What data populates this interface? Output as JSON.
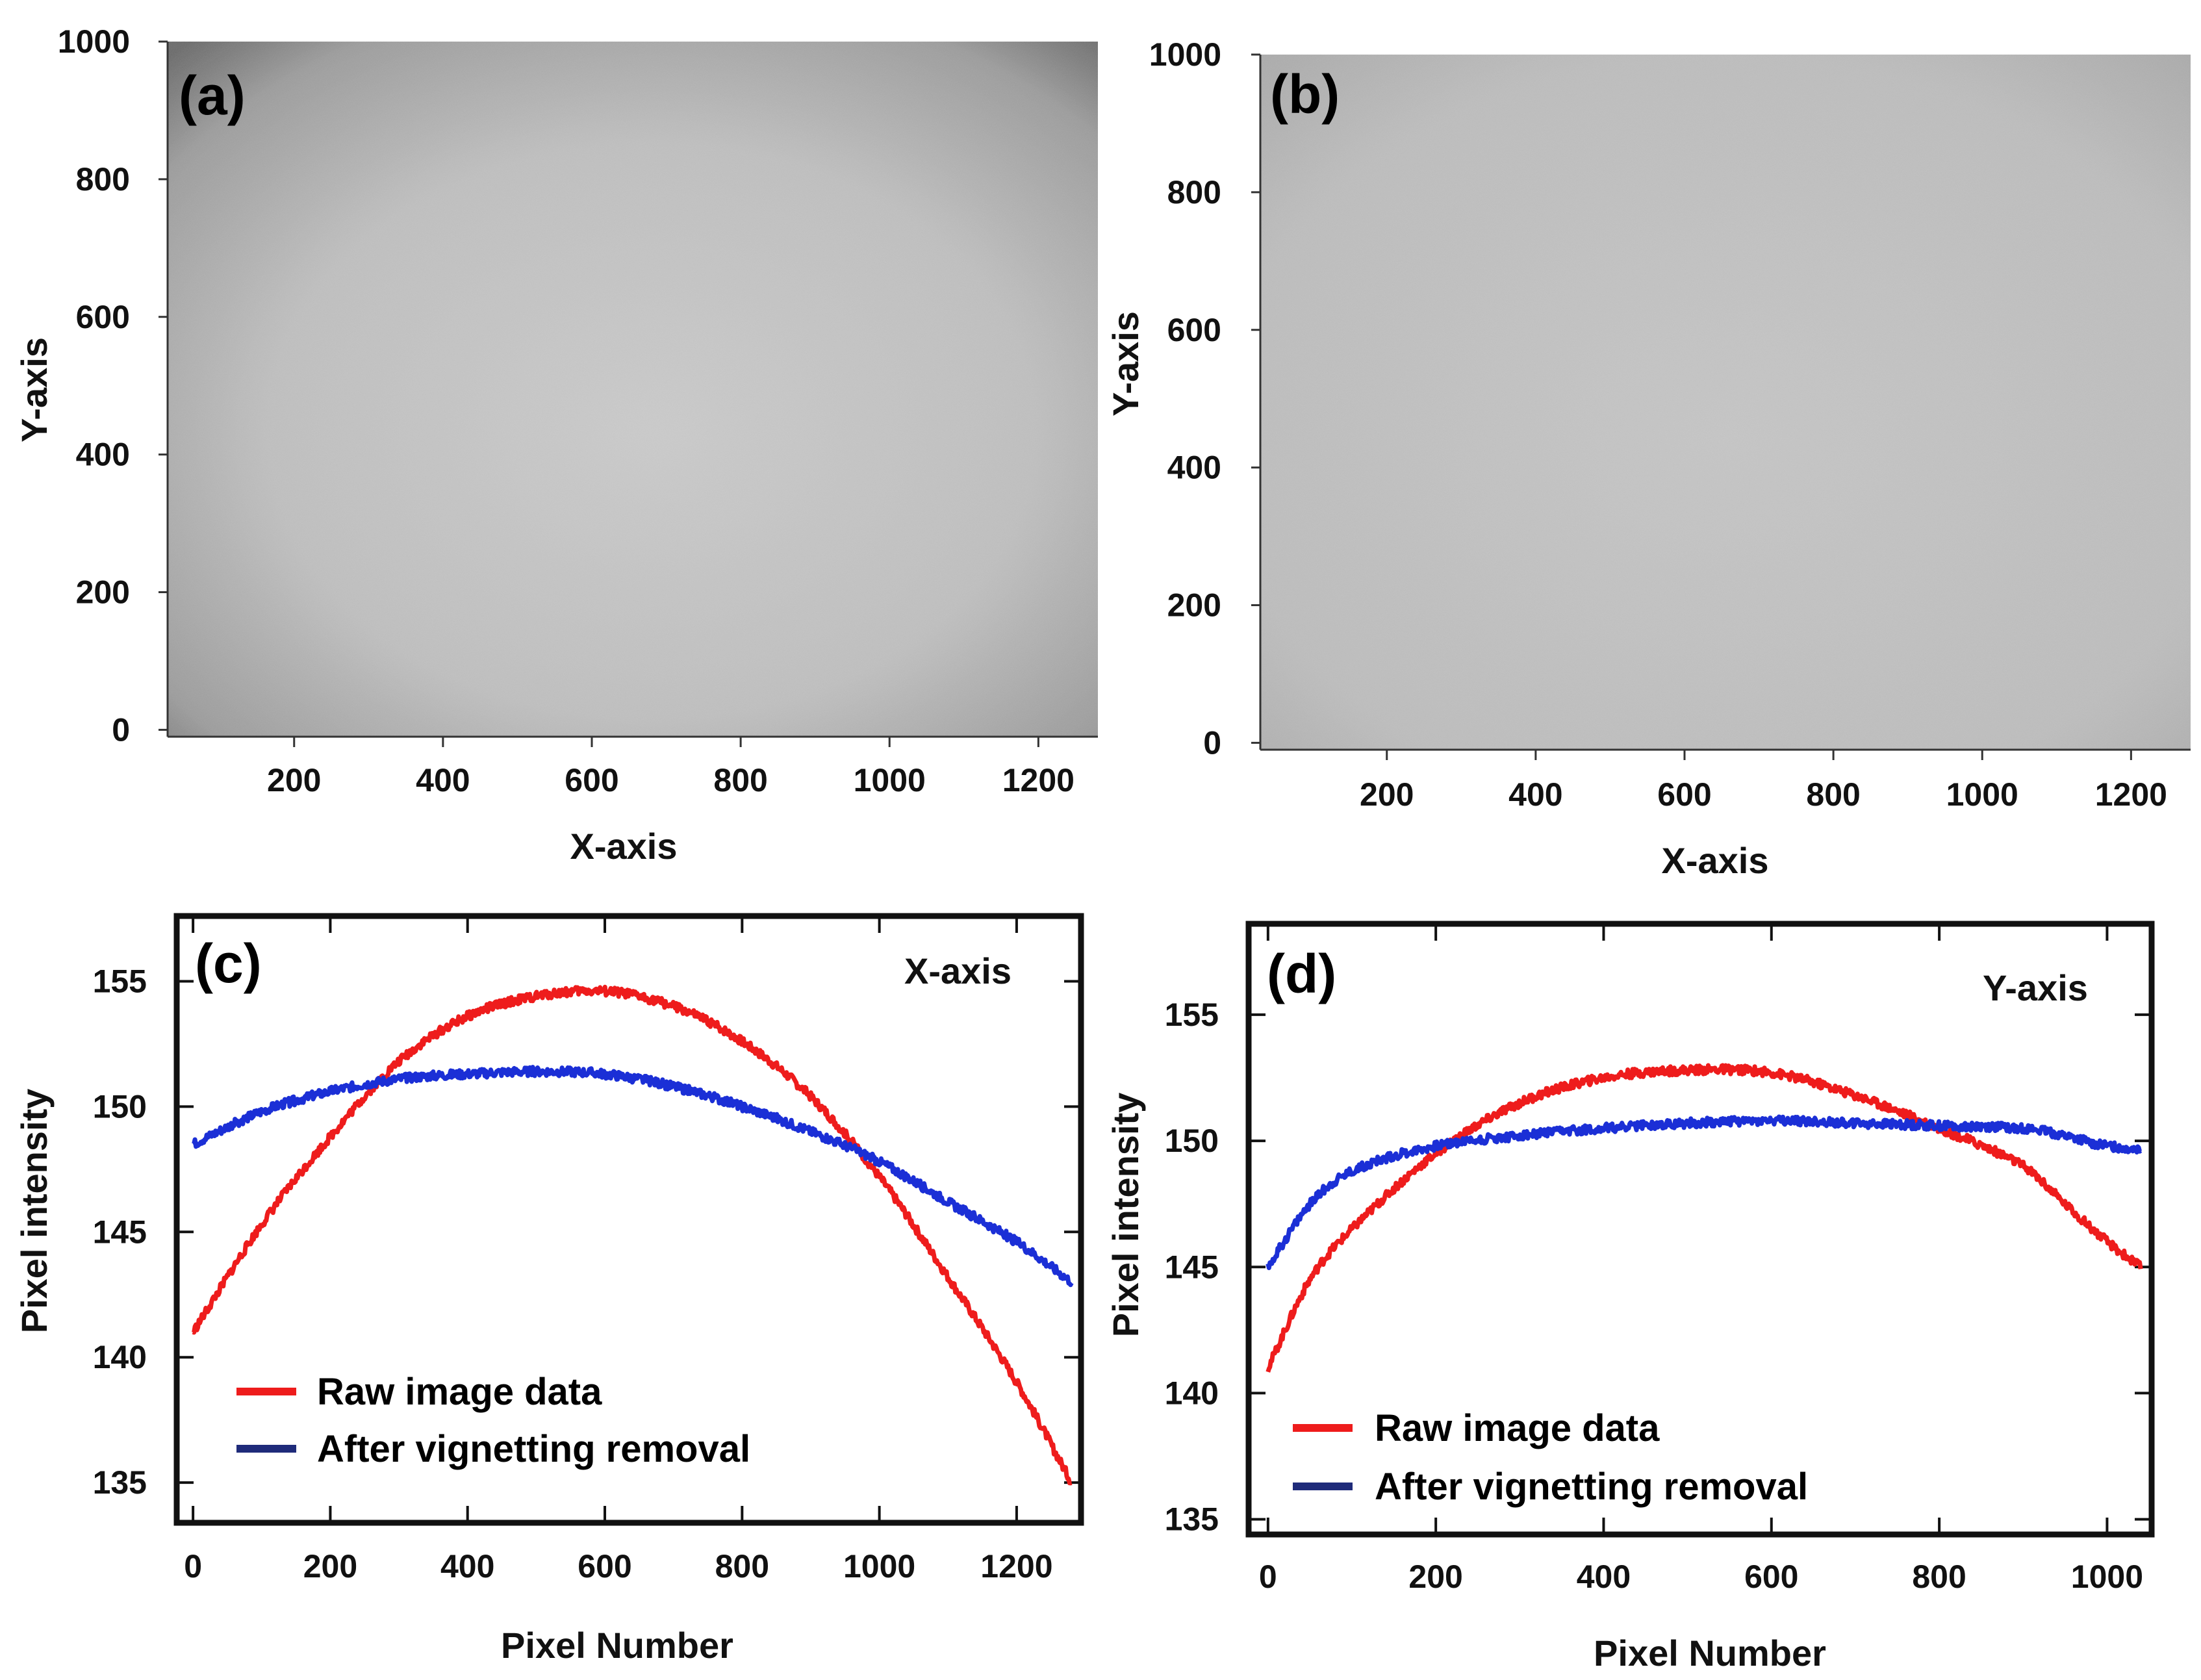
{
  "chart_data": [
    {
      "panel": "(a)",
      "type": "heatmap",
      "description_hidden": false,
      "xlabel": "X-axis",
      "ylabel": "Y-axis",
      "xlim": [
        30,
        1280
      ],
      "ylim": [
        -10,
        1000
      ],
      "x_ticks": [
        200,
        400,
        600,
        800,
        1000,
        1200
      ],
      "y_ticks": [
        0,
        200,
        400,
        600,
        800,
        1000
      ],
      "colors": {
        "center": "#c9c9c9",
        "edge": "#7d7d7d",
        "corner": "#555555"
      }
    },
    {
      "panel": "(b)",
      "type": "heatmap",
      "xlabel": "X-axis",
      "ylabel": "Y-axis",
      "xlim": [
        30,
        1280
      ],
      "ylim": [
        -10,
        1000
      ],
      "x_ticks": [
        200,
        400,
        600,
        800,
        1000,
        1200
      ],
      "y_ticks": [
        0,
        200,
        400,
        600,
        800,
        1000
      ],
      "colors": {
        "center": "#c3c3c3",
        "edge": "#b0b0b0",
        "corner": "#a0a0a0"
      }
    },
    {
      "panel": "(c)",
      "type": "line",
      "annotation": "X-axis",
      "xlabel": "Pixel Number",
      "ylabel": "Pixel intensity",
      "xlim": [
        -20,
        1290
      ],
      "ylim": [
        133.5,
        157.5
      ],
      "x_ticks": [
        0,
        200,
        400,
        600,
        800,
        1000,
        1200
      ],
      "y_ticks": [
        135,
        140,
        145,
        150,
        155
      ],
      "legend_position": "lower-left",
      "series": [
        {
          "name": "Raw image data",
          "color": "#ee1c1c",
          "x": [
            0,
            100,
            200,
            300,
            400,
            500,
            600,
            700,
            800,
            900,
            1000,
            1100,
            1200,
            1280
          ],
          "values": [
            141,
            145.3,
            148.8,
            151.8,
            153.6,
            154.4,
            154.6,
            154.0,
            152.6,
            150.4,
            147.2,
            143.2,
            139.0,
            135
          ]
        },
        {
          "name": "After vignetting removal",
          "color": "#1b2fd6",
          "x": [
            0,
            100,
            200,
            300,
            400,
            500,
            600,
            700,
            800,
            900,
            1000,
            1100,
            1200,
            1280
          ],
          "values": [
            148.5,
            149.8,
            150.6,
            151.1,
            151.3,
            151.4,
            151.3,
            150.8,
            150.0,
            149.0,
            147.8,
            146.2,
            144.6,
            143
          ]
        }
      ]
    },
    {
      "panel": "(d)",
      "type": "line",
      "annotation": "Y-axis",
      "xlabel": "Pixel Number",
      "ylabel": "Pixel intensity",
      "xlim": [
        -20,
        1050
      ],
      "ylim": [
        134.5,
        158.5
      ],
      "x_ticks": [
        0,
        200,
        400,
        600,
        800,
        1000
      ],
      "y_ticks": [
        135,
        140,
        145,
        150,
        155
      ],
      "legend_position": "lower-left",
      "series": [
        {
          "name": "Raw image data",
          "color": "#ee1c1c",
          "x": [
            0,
            50,
            100,
            200,
            300,
            400,
            500,
            600,
            700,
            800,
            900,
            950,
            1000,
            1040
          ],
          "values": [
            141,
            144.5,
            146.5,
            149.5,
            151.5,
            152.5,
            152.8,
            152.7,
            151.8,
            150.5,
            149.0,
            147.5,
            146.0,
            145
          ]
        },
        {
          "name": "After vignetting removal",
          "color": "#1b2fd6",
          "x": [
            0,
            50,
            100,
            200,
            300,
            400,
            500,
            600,
            700,
            800,
            900,
            950,
            1000,
            1040
          ],
          "values": [
            145,
            147.5,
            148.8,
            149.8,
            150.2,
            150.5,
            150.7,
            150.8,
            150.7,
            150.6,
            150.5,
            150.2,
            149.8,
            149.7
          ]
        }
      ]
    }
  ]
}
